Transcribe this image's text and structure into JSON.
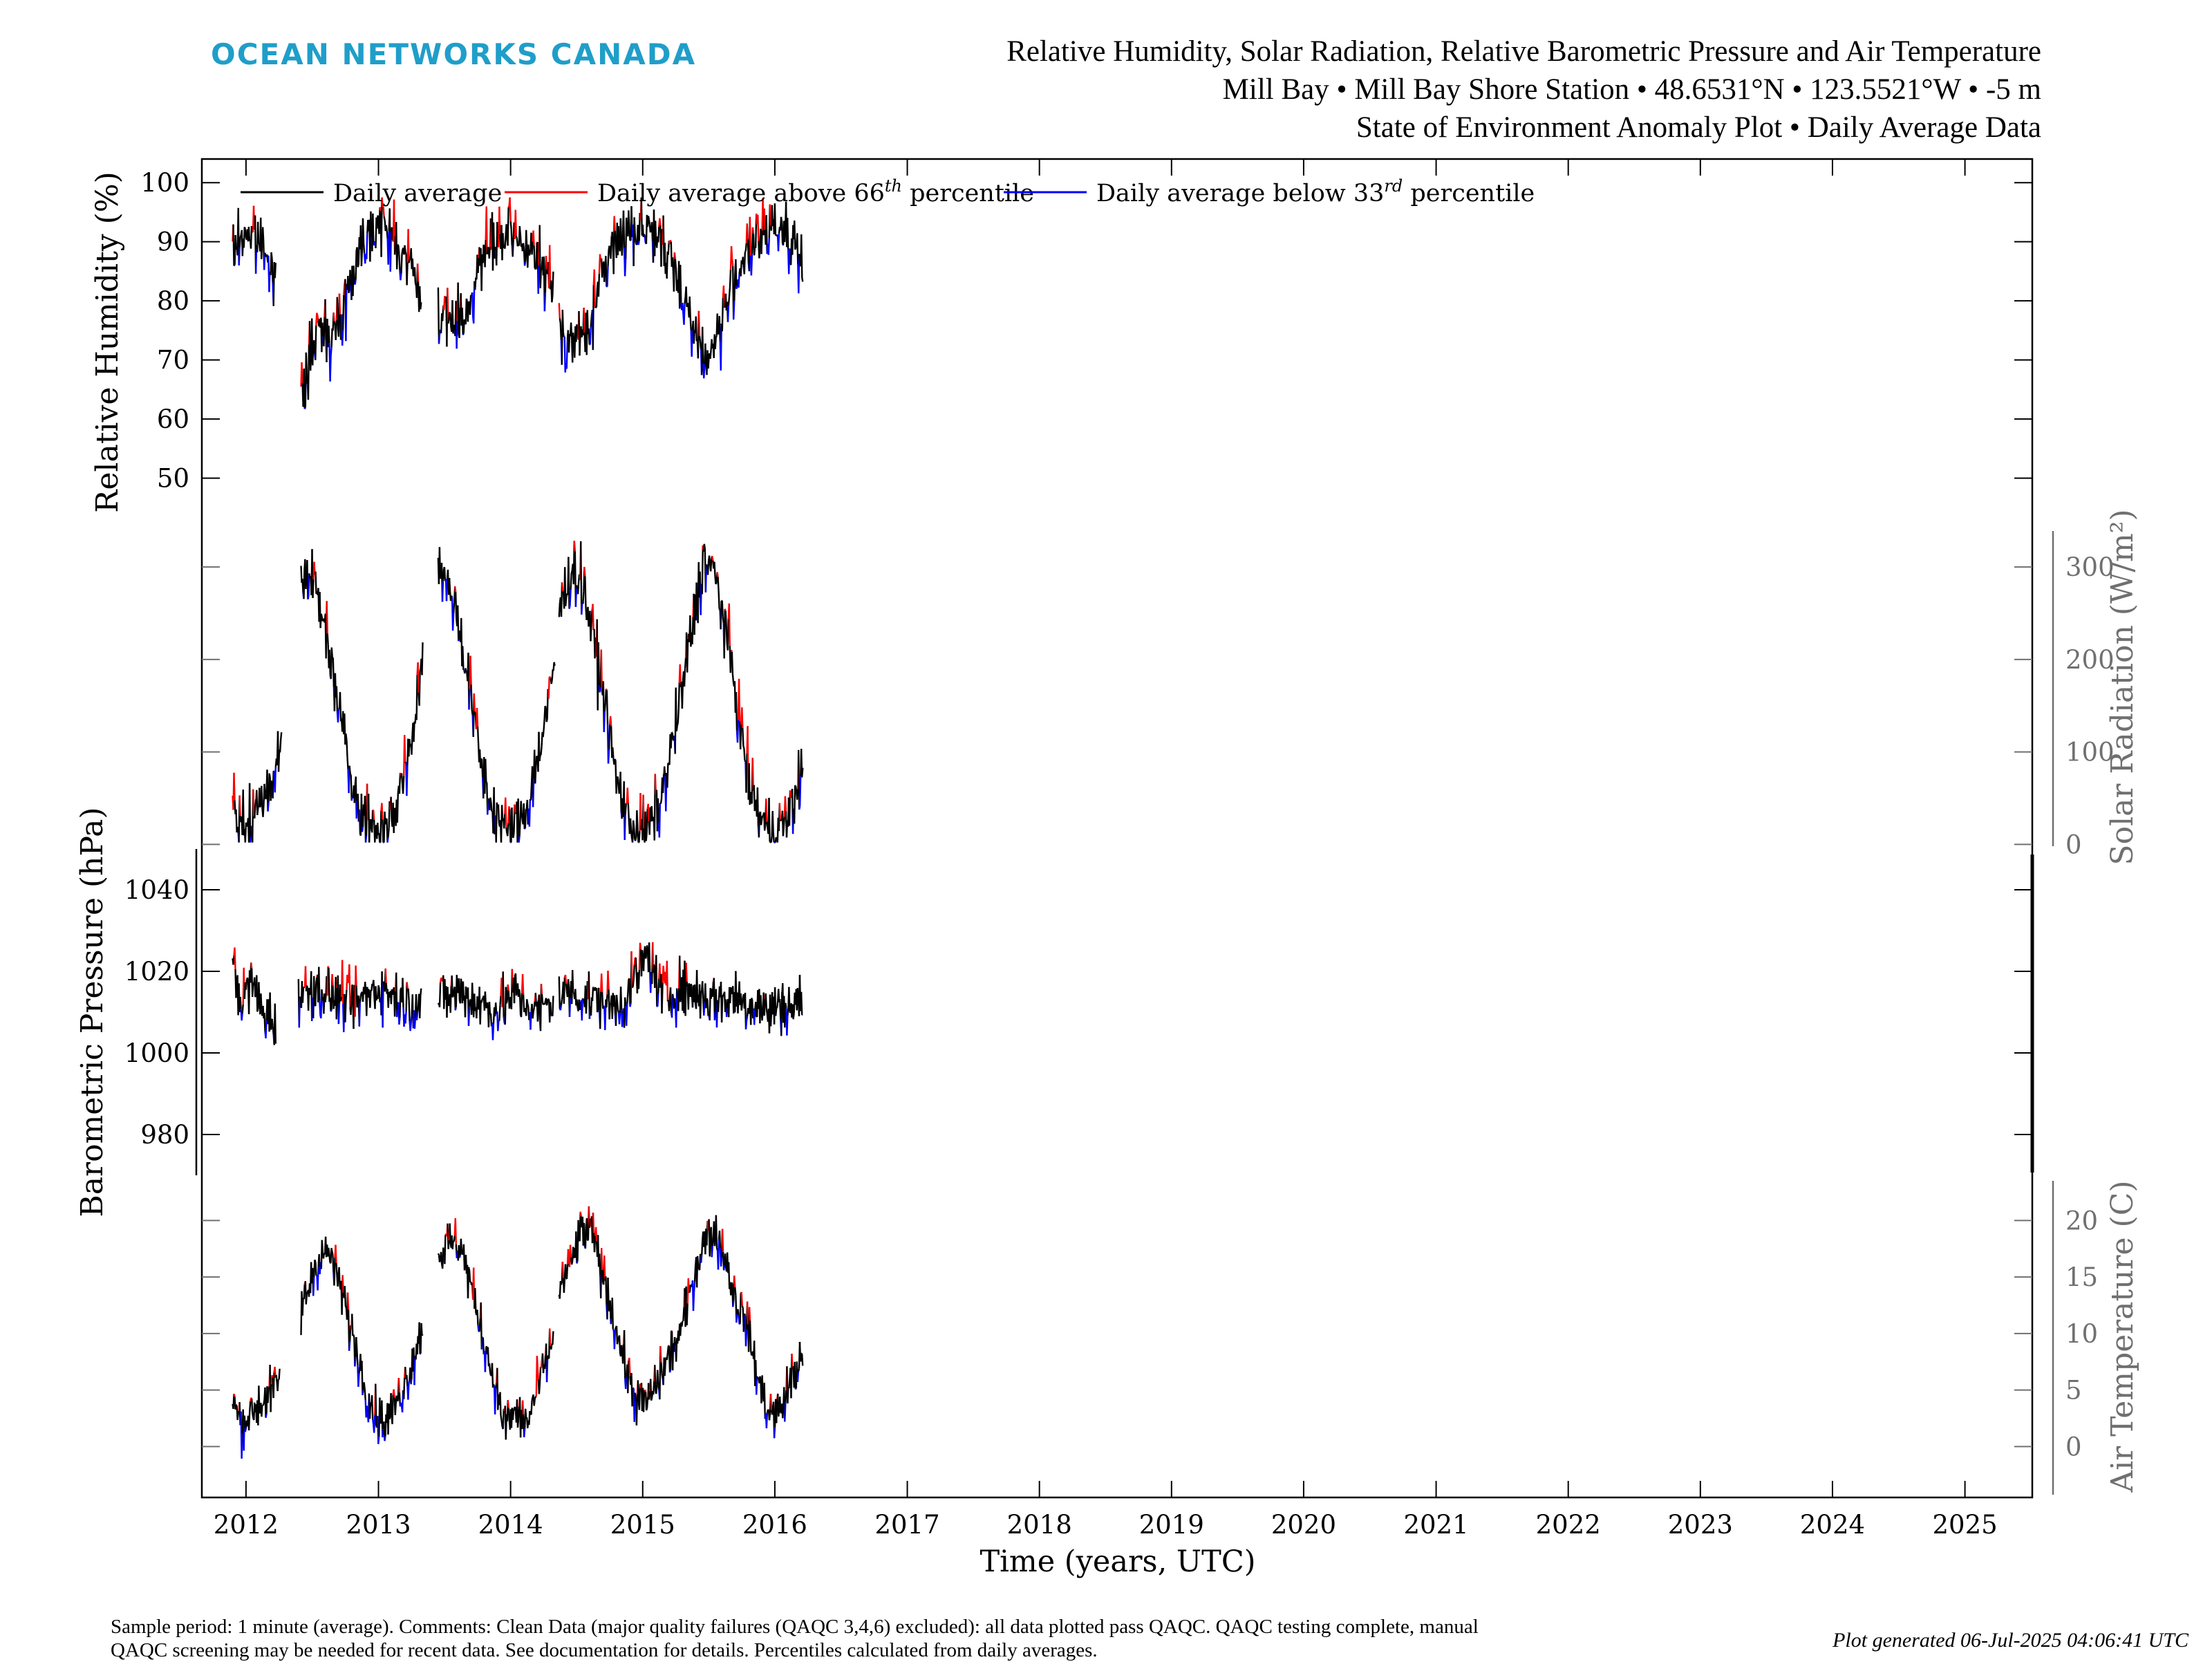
{
  "header": {
    "brand": "OCEAN NETWORKS CANADA",
    "title_line1": "Relative Humidity, Solar Radiation, Relative Barometric Pressure and Air Temperature",
    "title_line2": "Mill Bay • Mill Bay Shore Station • 48.6531°N • 123.5521°W • -5 m",
    "title_line3": "State of Environment Anomaly Plot • Daily Average Data"
  },
  "legend": {
    "black": "Daily average",
    "red_pre": "Daily average above 66",
    "red_sup": "th",
    "red_post": " percentile",
    "blue_pre": "Daily average below 33",
    "blue_sup": "rd",
    "blue_post": " percentile"
  },
  "footer": {
    "note_line1": "Sample period: 1 minute (average). Comments: Clean Data (major quality failures (QAQC 3,4,6) excluded): all data plotted pass QAQC. QAQC testing complete, manual",
    "note_line2": "QAQC screening may be needed for recent data. See documentation for details. Percentiles calculated from daily averages.",
    "generated": "Plot generated 06-Jul-2025 04:06:41 UTC"
  },
  "colors": {
    "black": "#000000",
    "red": "#ff0000",
    "blue": "#0000ff",
    "brand": "#1f9ec9",
    "axis_gray": "#707070"
  },
  "chart_data": {
    "type": "line",
    "xlabel": "Time (years, UTC)",
    "x_ticks": [
      "2012",
      "2013",
      "2014",
      "2015",
      "2016",
      "2017",
      "2018",
      "2019",
      "2020",
      "2021",
      "2022",
      "2023",
      "2024",
      "2025"
    ],
    "x_range": [
      "2011-09-01",
      "2025-07-06"
    ],
    "series_colors": {
      "Daily average": "#000000",
      "Daily average above 66th percentile": "#ff0000",
      "Daily average below 33rd percentile": "#0000ff"
    },
    "panels": [
      {
        "ylabel": "Relative Humidity (%)",
        "axis_side": "left",
        "y_ticks": [
          50,
          60,
          70,
          80,
          90,
          100
        ],
        "ylim": [
          42,
          104
        ],
        "segments": [
          {
            "x": [
              "2011-11-25",
              "2012-01-01",
              "2012-02-01",
              "2012-03-01",
              "2012-03-25"
            ],
            "y": [
              88,
              92,
              90,
              89,
              82
            ]
          },
          {
            "x": [
              "2012-06-01",
              "2012-07-01",
              "2012-08-01",
              "2012-09-01",
              "2012-10-01",
              "2012-11-01",
              "2012-12-01",
              "2013-01-01",
              "2013-02-01",
              "2013-03-01",
              "2013-04-01",
              "2013-05-01"
            ],
            "y": [
              63,
              72,
              76,
              74,
              80,
              87,
              92,
              93,
              92,
              88,
              86,
              80
            ]
          },
          {
            "x": [
              "2013-06-15",
              "2013-07-01",
              "2013-08-01",
              "2013-09-01",
              "2013-10-01",
              "2013-11-01",
              "2013-12-01",
              "2014-01-01",
              "2014-02-01",
              "2014-03-01",
              "2014-04-01",
              "2014-05-01"
            ],
            "y": [
              80,
              76,
              77,
              78,
              85,
              89,
              90,
              91,
              90,
              88,
              85,
              82
            ]
          },
          {
            "x": [
              "2014-05-15",
              "2014-06-01",
              "2014-07-01",
              "2014-08-01",
              "2014-09-01",
              "2014-10-01",
              "2014-11-01",
              "2014-12-01",
              "2015-01-01",
              "2015-02-01",
              "2015-03-01",
              "2015-04-01",
              "2015-05-01",
              "2015-06-01",
              "2015-07-01",
              "2015-08-01",
              "2015-09-01",
              "2015-10-01",
              "2015-11-01",
              "2015-12-01",
              "2016-01-01",
              "2016-02-01",
              "2016-03-01",
              "2016-03-20"
            ],
            "y": [
              76,
              74,
              73,
              75,
              82,
              88,
              91,
              92,
              93,
              92,
              88,
              85,
              80,
              73,
              70,
              75,
              82,
              87,
              89,
              91,
              93,
              92,
              89,
              85
            ]
          }
        ]
      },
      {
        "ylabel": "Solar Radiation (W/m²)",
        "axis_side": "right",
        "y_ticks": [
          0,
          100,
          200,
          300
        ],
        "ylim": [
          -5,
          345
        ],
        "segments": [
          {
            "x": [
              "2011-11-25",
              "2011-12-20",
              "2012-01-15",
              "2012-02-15",
              "2012-03-15",
              "2012-04-10"
            ],
            "y": [
              30,
              20,
              25,
              45,
              75,
              120
            ]
          },
          {
            "x": [
              "2012-06-01",
              "2012-06-20",
              "2012-07-15",
              "2012-08-15",
              "2012-09-15",
              "2012-10-15",
              "2012-11-15",
              "2012-12-20",
              "2013-01-20",
              "2013-02-20",
              "2013-03-20",
              "2013-04-20",
              "2013-05-05"
            ],
            "y": [
              280,
              300,
              270,
              220,
              150,
              80,
              35,
              15,
              20,
              40,
              90,
              150,
              220
            ]
          },
          {
            "x": [
              "2013-06-15",
              "2013-07-10",
              "2013-08-10",
              "2013-09-10",
              "2013-10-10",
              "2013-11-10",
              "2013-12-20",
              "2014-01-20",
              "2014-02-20",
              "2014-03-20",
              "2014-04-20",
              "2014-05-05"
            ],
            "y": [
              300,
              290,
              240,
              170,
              90,
              40,
              15,
              20,
              45,
              100,
              160,
              210
            ]
          },
          {
            "x": [
              "2014-05-15",
              "2014-06-20",
              "2014-07-20",
              "2014-08-20",
              "2014-09-20",
              "2014-10-20",
              "2014-11-20",
              "2014-12-20",
              "2015-01-20",
              "2015-02-20",
              "2015-03-20",
              "2015-04-20",
              "2015-05-20",
              "2015-06-20",
              "2015-07-20",
              "2015-08-20",
              "2015-09-20",
              "2015-10-20",
              "2015-11-20",
              "2015-12-20",
              "2016-01-20",
              "2016-02-20",
              "2016-03-20"
            ],
            "y": [
              250,
              300,
              280,
              220,
              150,
              70,
              30,
              15,
              20,
              45,
              100,
              170,
              240,
              310,
              290,
              230,
              150,
              70,
              30,
              15,
              20,
              40,
              90
            ]
          }
        ]
      },
      {
        "ylabel": "Barometric Pressure (hPa)",
        "axis_side": "left",
        "y_ticks": [
          980,
          1000,
          1020,
          1040
        ],
        "ylim": [
          970,
          1050
        ],
        "segments": [
          {
            "x": [
              "2011-11-25",
              "2011-12-20",
              "2012-01-15",
              "2012-02-15",
              "2012-03-15",
              "2012-03-25"
            ],
            "y": [
              1022,
              1012,
              1018,
              1010,
              1008,
              1006
            ]
          },
          {
            "x": [
              "2012-05-25",
              "2012-07-01",
              "2012-08-01",
              "2012-09-01",
              "2012-10-01",
              "2012-11-01",
              "2012-12-01",
              "2013-01-01",
              "2013-02-01",
              "2013-03-01",
              "2013-04-01",
              "2013-05-01"
            ],
            "y": [
              1014,
              1016,
              1015,
              1014,
              1013,
              1012,
              1014,
              1016,
              1015,
              1013,
              1012,
              1013
            ]
          },
          {
            "x": [
              "2013-06-15",
              "2013-07-15",
              "2013-08-15",
              "2013-09-15",
              "2013-10-15",
              "2013-11-15",
              "2013-12-15",
              "2014-01-15",
              "2014-02-15",
              "2014-03-15",
              "2014-04-15",
              "2014-05-01"
            ],
            "y": [
              1013,
              1014,
              1015,
              1013,
              1012,
              1010,
              1012,
              1015,
              1012,
              1010,
              1012,
              1013
            ]
          },
          {
            "x": [
              "2014-05-15",
              "2014-06-15",
              "2014-07-15",
              "2014-08-15",
              "2014-09-15",
              "2014-10-15",
              "2014-11-15",
              "2014-12-15",
              "2015-01-15",
              "2015-02-15",
              "2015-03-15",
              "2015-04-15",
              "2015-05-15",
              "2015-06-15",
              "2015-07-15",
              "2015-08-15",
              "2015-09-15",
              "2015-10-15",
              "2015-11-15",
              "2015-12-15",
              "2016-01-15",
              "2016-02-15",
              "2016-03-20"
            ],
            "y": [
              1014,
              1015,
              1014,
              1013,
              1013,
              1011,
              1013,
              1019,
              1024,
              1016,
              1014,
              1016,
              1015,
              1014,
              1013,
              1013,
              1014,
              1012,
              1012,
              1010,
              1012,
              1011,
              1013
            ]
          }
        ]
      },
      {
        "ylabel": "Air Temperature (C)",
        "axis_side": "right",
        "y_ticks": [
          0,
          5,
          10,
          15,
          20
        ],
        "ylim": [
          -4.5,
          24
        ],
        "segments": [
          {
            "x": [
              "2011-11-25",
              "2011-12-20",
              "2012-01-15",
              "2012-02-15",
              "2012-03-15",
              "2012-04-05"
            ],
            "y": [
              4,
              2,
              3,
              4,
              5,
              6
            ]
          },
          {
            "x": [
              "2012-06-01",
              "2012-07-01",
              "2012-07-25",
              "2012-08-20",
              "2012-09-20",
              "2012-10-20",
              "2012-11-20",
              "2012-12-20",
              "2013-01-20",
              "2013-02-20",
              "2013-03-20",
              "2013-04-20",
              "2013-05-05"
            ],
            "y": [
              12,
              15,
              17,
              17,
              14,
              10,
              6,
              3,
              2,
              4,
              6,
              9,
              11
            ]
          },
          {
            "x": [
              "2013-06-15",
              "2013-07-15",
              "2013-08-15",
              "2013-09-15",
              "2013-10-15",
              "2013-11-15",
              "2013-12-15",
              "2014-01-15",
              "2014-02-15",
              "2014-03-15",
              "2014-04-15",
              "2014-05-01"
            ],
            "y": [
              17,
              18,
              18,
              14,
              10,
              6,
              2,
              3,
              2,
              5,
              8,
              10
            ]
          },
          {
            "x": [
              "2014-05-15",
              "2014-06-15",
              "2014-07-15",
              "2014-08-15",
              "2014-09-15",
              "2014-10-15",
              "2014-11-15",
              "2014-12-15",
              "2015-01-15",
              "2015-02-15",
              "2015-03-15",
              "2015-04-15",
              "2015-05-15",
              "2015-06-15",
              "2015-07-15",
              "2015-08-15",
              "2015-09-15",
              "2015-10-15",
              "2015-11-15",
              "2015-12-15",
              "2016-01-15",
              "2016-02-15",
              "2016-03-20"
            ],
            "y": [
              14,
              16,
              19,
              19,
              15,
              11,
              7,
              4,
              4,
              6,
              8,
              10,
              14,
              18,
              19,
              17,
              13,
              11,
              6,
              3,
              3,
              6,
              8
            ]
          }
        ]
      }
    ]
  }
}
